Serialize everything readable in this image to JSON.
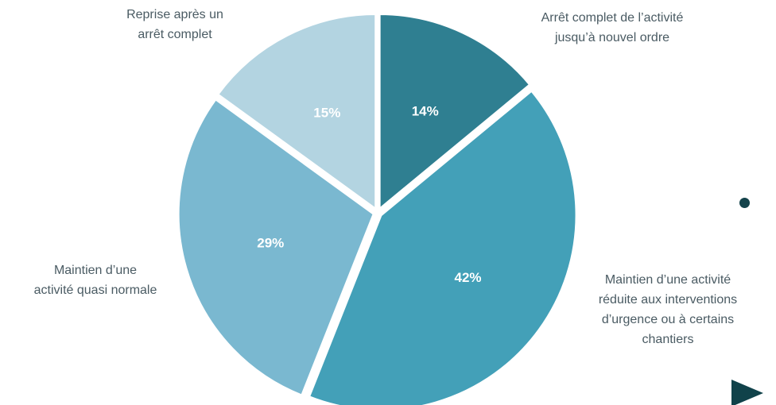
{
  "chart_data": {
    "type": "pie",
    "title": "",
    "slices": [
      {
        "label": "Arrêt complet de l’activité\njusqu’à nouvel ordre",
        "value": 14,
        "value_label": "14%",
        "color": "#2f7f91"
      },
      {
        "label": "Maintien d’une activité\nréduite aux interventions\nd’urgence ou à certains\nchantiers",
        "value": 42,
        "value_label": "42%",
        "color": "#43a0b8"
      },
      {
        "label": "Maintien d’une\nactivité quasi normale",
        "value": 29,
        "value_label": "29%",
        "color": "#7ab8d0"
      },
      {
        "label": "Reprise après un\narrêt complet",
        "value": 15,
        "value_label": "15%",
        "color": "#b3d4e1"
      }
    ]
  },
  "decor": {
    "bullet_color": "#14434b",
    "play_color": "#10424a",
    "play_icon": "play-triangle-icon",
    "bullet_icon": "bullet-dot-icon"
  }
}
